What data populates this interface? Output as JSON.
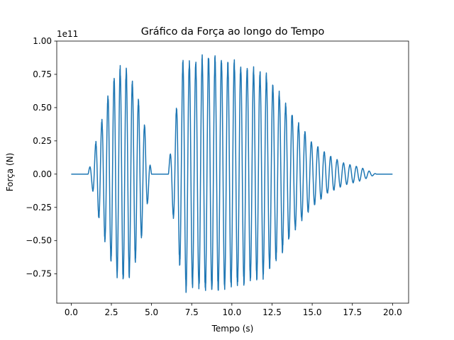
{
  "chart_data": {
    "type": "line",
    "title": "Gráfico da Força ao longo do Tempo",
    "xlabel": "Tempo (s)",
    "ylabel": "Força (N)",
    "y_offset_label": "1e11",
    "xlim": [
      -0.9,
      21.0
    ],
    "ylim": [
      -0.97,
      1.0
    ],
    "x_ticks": [
      0,
      2.5,
      5,
      7.5,
      10,
      12.5,
      15,
      17.5,
      20
    ],
    "x_tick_labels": [
      "0.0",
      "2.5",
      "5.0",
      "7.5",
      "10.0",
      "12.5",
      "15.0",
      "17.5",
      "20.0"
    ],
    "y_ticks": [
      -0.75,
      -0.5,
      -0.25,
      0,
      0.25,
      0.5,
      0.75,
      1.0
    ],
    "y_tick_labels": [
      "−0.75",
      "−0.50",
      "−0.25",
      "0.00",
      "0.25",
      "0.50",
      "0.75",
      "1.00"
    ],
    "grid": false,
    "series": [
      {
        "color": "#1f77b4",
        "segments": [
          {
            "type": "flat",
            "x_start": 0.0,
            "x_end": 1.05,
            "y": 0.0
          },
          {
            "type": "oscillation",
            "x_start": 1.05,
            "x_end": 5.0,
            "period": 0.38,
            "envelope": [
              [
                1.05,
                0.02
              ],
              [
                1.3,
                0.1
              ],
              [
                1.6,
                0.28
              ],
              [
                1.9,
                0.4
              ],
              [
                2.3,
                0.6
              ],
              [
                2.7,
                0.72
              ],
              [
                3.1,
                0.8
              ],
              [
                3.5,
                0.78
              ],
              [
                3.9,
                0.68
              ],
              [
                4.3,
                0.5
              ],
              [
                4.6,
                0.35
              ],
              [
                5.0,
                0.0
              ]
            ]
          },
          {
            "type": "flat",
            "x_start": 5.0,
            "x_end": 6.05,
            "y": 0.0
          },
          {
            "type": "oscillation",
            "x_start": 6.05,
            "x_end": 19.0,
            "period": 0.4,
            "envelope": [
              [
                6.05,
                0.05
              ],
              [
                6.5,
                0.45
              ],
              [
                7.0,
                0.88
              ],
              [
                7.5,
                0.82
              ],
              [
                8.0,
                0.86
              ],
              [
                8.5,
                0.88
              ],
              [
                9.0,
                0.86
              ],
              [
                10.0,
                0.84
              ],
              [
                11.0,
                0.8
              ],
              [
                12.0,
                0.76
              ],
              [
                13.0,
                0.6
              ],
              [
                14.0,
                0.4
              ],
              [
                15.0,
                0.24
              ],
              [
                16.0,
                0.14
              ],
              [
                17.0,
                0.08
              ],
              [
                18.0,
                0.05
              ],
              [
                19.0,
                0.0
              ]
            ]
          },
          {
            "type": "flat",
            "x_start": 19.0,
            "x_end": 20.0,
            "y": 0.0
          }
        ]
      }
    ]
  }
}
